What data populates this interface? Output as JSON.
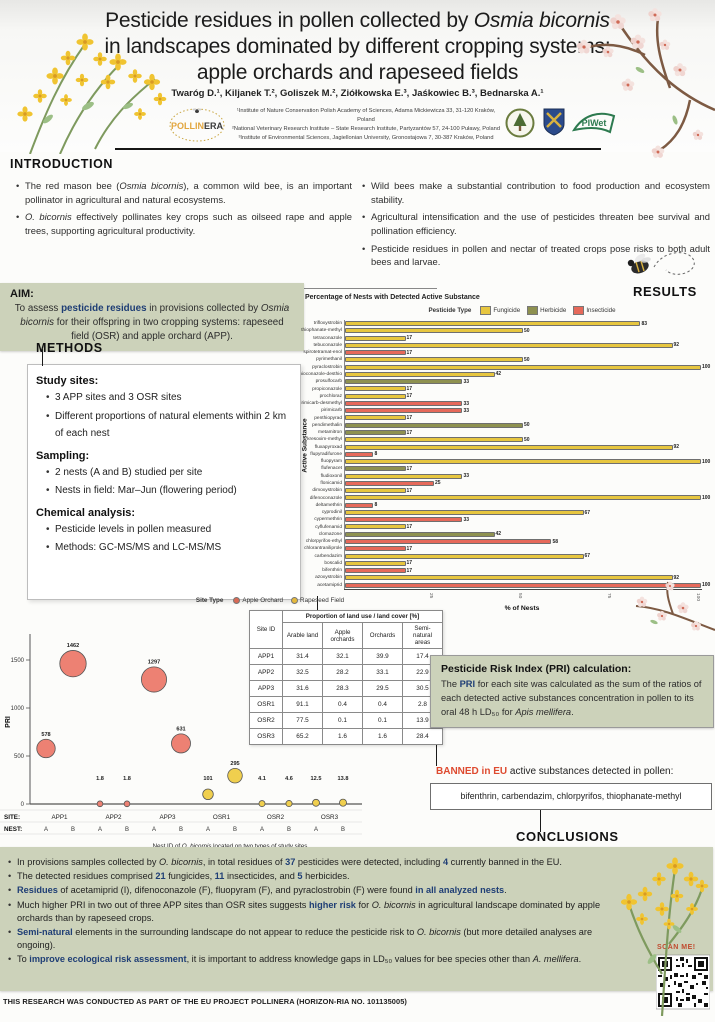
{
  "header": {
    "title_part1": "Pesticide residues in pollen collected by ",
    "title_italic": "Osmia bicornis",
    "title_line2": "in landscapes dominated by different cropping systems:",
    "title_line3": "apple orchards and rapeseed fields",
    "authors": "Twaróg D.¹, Kiljanek T.², Goliszek M.², Ziółkowska E.³, Jaśkowiec B.³, Bednarska A.¹",
    "affiliations": [
      "¹Institute of Nature Conservation Polish Academy of Sciences, Adama Mickiewicza 33, 31-120 Kraków, Poland",
      "²National Veterinary Research Institute – State Research Institute, Partyzantów 57, 24-100 Puławy, Poland",
      "³Institute of Environmental Sciences, Jagiellonian University, Gronostajowa 7, 30-387 Kraków, Poland"
    ],
    "logos": {
      "pollinera_part1": "POLLIN",
      "pollinera_part2": "ERA",
      "piwet": "PIWet"
    }
  },
  "sections": {
    "introduction": "INTRODUCTION",
    "methods": "METHODS",
    "results": "RESULTS",
    "conclusions": "CONCLUSIONS"
  },
  "introduction": {
    "left": [
      [
        {
          "t": "The red mason bee ("
        },
        {
          "t": "Osmia bicornis",
          "s": "i"
        },
        {
          "t": "), a common wild bee, is an important pollinator in agricultural and natural ecosystems."
        }
      ],
      [
        {
          "t": "O. bicornis",
          "s": "i"
        },
        {
          "t": " effectively pollinates key crops such as oilseed rape and apple trees, supporting agricultural productivity."
        }
      ]
    ],
    "right": [
      [
        {
          "t": "Wild bees make a substantial contribution to food production and ecosystem stability."
        }
      ],
      [
        {
          "t": "Agricultural intensification and the use of pesticides threaten bee survival and pollination efficiency."
        }
      ],
      [
        {
          "t": "Pesticide residues in pollen and nectar of treated crops pose risks to both adult bees and larvae."
        }
      ]
    ]
  },
  "aim": {
    "heading": "AIM:",
    "body": [
      {
        "t": "To assess "
      },
      {
        "t": "pesticide residues",
        "s": "hl"
      },
      {
        "t": " in provisions collected by "
      },
      {
        "t": "Osmia bicornis",
        "s": "i"
      },
      {
        "t": " for their offspring in two cropping systems: rapeseed field (OSR) and apple orchard (APP)."
      }
    ]
  },
  "methods": {
    "groups": [
      {
        "heading": "Study sites:",
        "bullets": [
          "3 APP sites and 3 OSR sites",
          "Different proportions of natural elements within 2 km of each nest"
        ]
      },
      {
        "heading": "Sampling:",
        "bullets": [
          "2 nests (A and B) studied per site",
          "Nests in field: Mar–Jun (flowering period)"
        ]
      },
      {
        "heading": "Chemical analysis:",
        "bullets": [
          "Pesticide levels in pollen measured",
          "Methods: GC-MS/MS and LC-MS/MS"
        ]
      }
    ]
  },
  "chart_data": [
    {
      "type": "bar",
      "title": "Percentage of Nests with Detected Active Substance",
      "legend_title": "Pesticide Type",
      "xlabel": "% of Nests",
      "ylabel": "Active Substance",
      "xlim": [
        0,
        100
      ],
      "xticks": [
        25,
        50,
        75,
        100
      ],
      "types": {
        "Fungicide": "#e7c63f",
        "Herbicide": "#8e9150",
        "Insecticide": "#e6695a"
      },
      "rows": [
        {
          "substance": "trifloxystrobin",
          "type": "Fungicide",
          "value": 83
        },
        {
          "substance": "thiophanate-methyl",
          "type": "Fungicide",
          "value": 50
        },
        {
          "substance": "tetraconazole",
          "type": "Fungicide",
          "value": 17
        },
        {
          "substance": "tebuconazole",
          "type": "Fungicide",
          "value": 92
        },
        {
          "substance": "spirotetramat-enol",
          "type": "Insecticide",
          "value": 17
        },
        {
          "substance": "pyrimethanil",
          "type": "Fungicide",
          "value": 50
        },
        {
          "substance": "pyraclostrobin",
          "type": "Fungicide",
          "value": 100
        },
        {
          "substance": "prothioconazole-desthio",
          "type": "Fungicide",
          "value": 42
        },
        {
          "substance": "prosulfocarb",
          "type": "Herbicide",
          "value": 33
        },
        {
          "substance": "propiconazole",
          "type": "Fungicide",
          "value": 17
        },
        {
          "substance": "prochloraz",
          "type": "Fungicide",
          "value": 17
        },
        {
          "substance": "pirimicarb-desmethyl",
          "type": "Insecticide",
          "value": 33
        },
        {
          "substance": "pirimicarb",
          "type": "Insecticide",
          "value": 33
        },
        {
          "substance": "penthiopyrad",
          "type": "Fungicide",
          "value": 17
        },
        {
          "substance": "pendimethalin",
          "type": "Herbicide",
          "value": 50
        },
        {
          "substance": "metamitron",
          "type": "Herbicide",
          "value": 17
        },
        {
          "substance": "kresoxim-methyl",
          "type": "Fungicide",
          "value": 50
        },
        {
          "substance": "fluxapyroxad",
          "type": "Fungicide",
          "value": 92
        },
        {
          "substance": "flupyradifurone",
          "type": "Insecticide",
          "value": 8
        },
        {
          "substance": "fluopyram",
          "type": "Fungicide",
          "value": 100
        },
        {
          "substance": "flufenacet",
          "type": "Herbicide",
          "value": 17
        },
        {
          "substance": "fludioxonil",
          "type": "Fungicide",
          "value": 33
        },
        {
          "substance": "flonicamid",
          "type": "Insecticide",
          "value": 25
        },
        {
          "substance": "dimoxystrobin",
          "type": "Fungicide",
          "value": 17
        },
        {
          "substance": "difenoconazole",
          "type": "Fungicide",
          "value": 100
        },
        {
          "substance": "deltamethrin",
          "type": "Insecticide",
          "value": 8
        },
        {
          "substance": "cyprodinil",
          "type": "Fungicide",
          "value": 67
        },
        {
          "substance": "cypermethrin",
          "type": "Insecticide",
          "value": 33
        },
        {
          "substance": "cyflufenamid",
          "type": "Fungicide",
          "value": 17
        },
        {
          "substance": "clomazone",
          "type": "Herbicide",
          "value": 42
        },
        {
          "substance": "chlorpyrifos-ethyl",
          "type": "Insecticide",
          "value": 58
        },
        {
          "substance": "chlorantraniliprole",
          "type": "Insecticide",
          "value": 17
        },
        {
          "substance": "carbendazim",
          "type": "Fungicide",
          "value": 67
        },
        {
          "substance": "boscalid",
          "type": "Fungicide",
          "value": 17
        },
        {
          "substance": "bifenthrin",
          "type": "Insecticide",
          "value": 17
        },
        {
          "substance": "azoxystrobin",
          "type": "Fungicide",
          "value": 92
        },
        {
          "substance": "acetamiprid",
          "type": "Insecticide",
          "value": 100
        }
      ]
    },
    {
      "type": "scatter",
      "legend_title": "Site Type",
      "legend_items": [
        {
          "label": "Apple Orchard",
          "color": "#d96a55"
        },
        {
          "label": "Rapeseed Field",
          "color": "#e5b93c"
        }
      ],
      "ylabel": "PRI",
      "yticks": [
        0,
        500,
        1000,
        1500
      ],
      "site_axis_label": "SITE:",
      "nest_axis_label": "NEST:",
      "caption": [
        {
          "t": "Nest ID of "
        },
        {
          "t": "O. bicornis",
          "s": "i"
        },
        {
          "t": " located on two types of study sites"
        }
      ],
      "colors": {
        "APP": "#ed8173",
        "OSR": "#f0cf4e"
      },
      "sites": [
        {
          "site": "APP1",
          "type": "APP",
          "nests": [
            {
              "nest": "A",
              "pri": 578
            },
            {
              "nest": "B",
              "pri": 1462
            }
          ]
        },
        {
          "site": "APP2",
          "type": "APP",
          "nests": [
            {
              "nest": "A",
              "pri": 1.8
            },
            {
              "nest": "B",
              "pri": 1.8
            }
          ]
        },
        {
          "site": "APP3",
          "type": "APP",
          "nests": [
            {
              "nest": "A",
              "pri": 1297
            },
            {
              "nest": "B",
              "pri": 631
            }
          ]
        },
        {
          "site": "OSR1",
          "type": "OSR",
          "nests": [
            {
              "nest": "A",
              "pri": 101
            },
            {
              "nest": "B",
              "pri": 295
            }
          ]
        },
        {
          "site": "OSR2",
          "type": "OSR",
          "nests": [
            {
              "nest": "A",
              "pri": 4.1
            },
            {
              "nest": "B",
              "pri": 4.6
            }
          ]
        },
        {
          "site": "OSR3",
          "type": "OSR",
          "nests": [
            {
              "nest": "A",
              "pri": 12.5
            },
            {
              "nest": "B",
              "pri": 13.8
            }
          ]
        }
      ]
    },
    {
      "type": "table",
      "title": "Proportion of land use / land cover [%]",
      "row_header": "Site ID",
      "columns": [
        "Arable land",
        "Apple orchards",
        "Orchards",
        "Semi-natural areas"
      ],
      "rows": [
        {
          "site": "APP1",
          "values": [
            "31.4",
            "32.1",
            "39.9",
            "17.4"
          ]
        },
        {
          "site": "APP2",
          "values": [
            "32.5",
            "28.2",
            "33.1",
            "22.9"
          ]
        },
        {
          "site": "APP3",
          "values": [
            "31.6",
            "28.3",
            "29.5",
            "30.5"
          ]
        },
        {
          "site": "OSR1",
          "values": [
            "91.1",
            "0.4",
            "0.4",
            "2.8"
          ]
        },
        {
          "site": "OSR2",
          "values": [
            "77.5",
            "0.1",
            "0.1",
            "13.9"
          ]
        },
        {
          "site": "OSR3",
          "values": [
            "65.2",
            "1.6",
            "1.6",
            "28.4"
          ]
        }
      ]
    }
  ],
  "pri_box": {
    "heading": "Pesticide Risk Index (PRI) calculation:",
    "body": [
      {
        "t": "The "
      },
      {
        "t": "PRI",
        "s": "hl"
      },
      {
        "t": " for each site was calculated as the sum of the ratios of each detected active substances concentration in pollen to its oral 48 h LD₅₀ for "
      },
      {
        "t": "Apis mellifera",
        "s": "i"
      },
      {
        "t": "."
      }
    ]
  },
  "banned": {
    "heading": [
      {
        "t": "BANNED in EU",
        "s": "red"
      },
      {
        "t": " active substances detected in pollen:"
      }
    ],
    "substances": "bifenthrin, carbendazim, chlorpyrifos, thiophanate-methyl"
  },
  "conclusions": {
    "bullets": [
      [
        {
          "t": "In provisions samples collected by "
        },
        {
          "t": "O. bicornis",
          "s": "i"
        },
        {
          "t": ", in total residues of "
        },
        {
          "t": "37",
          "s": "hl"
        },
        {
          "t": " pesticides were detected, including "
        },
        {
          "t": "4",
          "s": "hl"
        },
        {
          "t": " currently banned in the EU."
        }
      ],
      [
        {
          "t": "The detected residues comprised "
        },
        {
          "t": "21",
          "s": "hl"
        },
        {
          "t": " fungicides, "
        },
        {
          "t": "11",
          "s": "hl"
        },
        {
          "t": " insecticides, and "
        },
        {
          "t": "5",
          "s": "hl"
        },
        {
          "t": " herbicides."
        }
      ],
      [
        {
          "t": "Residues",
          "s": "hl"
        },
        {
          "t": " of acetamiprid (I), difenoconazole (F), fluopyram (F), and pyraclostrobin (F) were found "
        },
        {
          "t": "in all analyzed nests",
          "s": "hl"
        },
        {
          "t": "."
        }
      ],
      [
        {
          "t": "Much higher PRI in two out of three APP sites than OSR sites suggests "
        },
        {
          "t": "higher risk",
          "s": "hl"
        },
        {
          "t": " for "
        },
        {
          "t": "O. bicornis",
          "s": "i"
        },
        {
          "t": " in agricultural landscape dominated by apple orchards than by rapeseed crops."
        }
      ],
      [
        {
          "t": "Semi-natural",
          "s": "hl"
        },
        {
          "t": " elements in the surrounding landscape do not appear to reduce the pesticide risk to "
        },
        {
          "t": "O. bicornis",
          "s": "i"
        },
        {
          "t": " (but more detailed analyses are ongoing)."
        }
      ],
      [
        {
          "t": "To "
        },
        {
          "t": "improve ecological risk assessment",
          "s": "hl"
        },
        {
          "t": ", it is important to address knowledge gaps in LD₅₀ values for bee species other than "
        },
        {
          "t": "A. mellifera",
          "s": "i"
        },
        {
          "t": "."
        }
      ]
    ]
  },
  "qr": {
    "label": "SCAN ME!"
  },
  "footer": "THIS RESEARCH WAS CONDUCTED AS PART OF THE EU PROJECT POLLINERA (HORIZON-RIA NO. 101135005)"
}
